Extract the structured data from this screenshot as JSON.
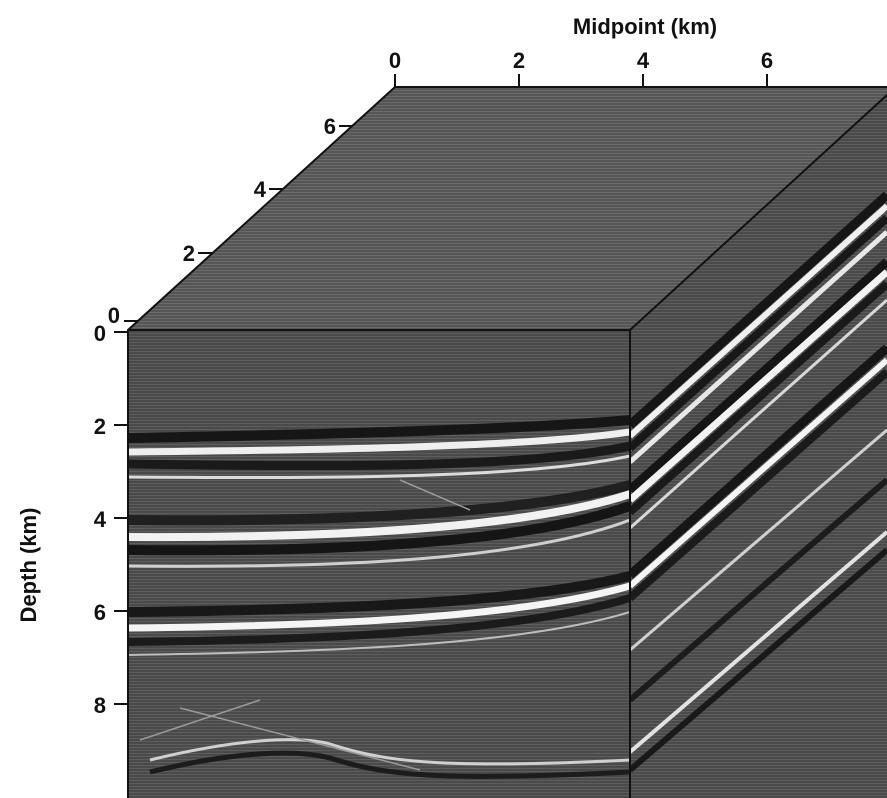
{
  "figure": {
    "midpoint_axis": {
      "title": "Midpoint (km)",
      "ticks": [
        "0",
        "2",
        "4",
        "6"
      ]
    },
    "crossline_axis": {
      "ticks": [
        "0",
        "2",
        "4",
        "6"
      ]
    },
    "depth_axis": {
      "title": "Depth (km)",
      "ticks": [
        "0",
        "2",
        "4",
        "6",
        "8"
      ]
    },
    "colors": {
      "background": "#ffffff",
      "front_face": "#4a4a4a",
      "top_face": "#5a5a5a",
      "side_face": "#454545",
      "bright_reflector": "#f2f2f2",
      "dark_reflector": "#161616",
      "edge": "#111111"
    }
  }
}
